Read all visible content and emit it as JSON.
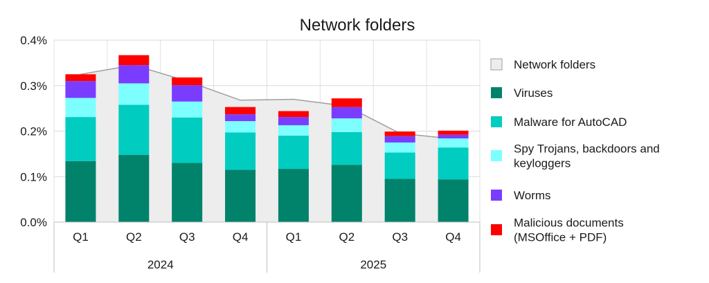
{
  "chart_data": {
    "type": "bar",
    "title": "Network folders",
    "xlabel": "",
    "ylabel": "",
    "ylim": [
      0,
      0.4
    ],
    "y_ticks": [
      "0.0%",
      "0.1%",
      "0.2%",
      "0.3%",
      "0.4%"
    ],
    "y_tick_values": [
      0,
      0.1,
      0.2,
      0.3,
      0.4
    ],
    "grid": true,
    "legend_position": "right",
    "categories": [
      "Q1",
      "Q2",
      "Q3",
      "Q4",
      "Q1",
      "Q2",
      "Q3",
      "Q4"
    ],
    "groups": [
      {
        "label": "2024",
        "categories": [
          "Q1",
          "Q2",
          "Q3",
          "Q4"
        ]
      },
      {
        "label": "2025",
        "categories": [
          "Q1",
          "Q2",
          "Q3",
          "Q4"
        ]
      }
    ],
    "area_series": {
      "name": "Network folders",
      "color": "#ededed",
      "values": [
        0.325,
        0.345,
        0.31,
        0.268,
        0.27,
        0.255,
        0.195,
        0.183
      ]
    },
    "series": [
      {
        "name": "Viruses",
        "color": "#00826b",
        "values": [
          0.134,
          0.148,
          0.13,
          0.115,
          0.117,
          0.126,
          0.095,
          0.094
        ]
      },
      {
        "name": "Malware for AutoCAD",
        "color": "#00ccc0",
        "values": [
          0.097,
          0.11,
          0.1,
          0.082,
          0.073,
          0.072,
          0.058,
          0.07
        ]
      },
      {
        "name": "Spy Trojans, backdoors and keyloggers",
        "color": "#7effff",
        "values": [
          0.042,
          0.047,
          0.035,
          0.025,
          0.023,
          0.03,
          0.022,
          0.02
        ]
      },
      {
        "name": "Worms",
        "color": "#7a3dff",
        "values": [
          0.037,
          0.04,
          0.036,
          0.015,
          0.018,
          0.025,
          0.014,
          0.008
        ]
      },
      {
        "name": "Malicious documents (MSOffice + PDF)",
        "color": "#ff0000",
        "values": [
          0.015,
          0.022,
          0.017,
          0.016,
          0.013,
          0.019,
          0.01,
          0.009
        ]
      }
    ]
  }
}
